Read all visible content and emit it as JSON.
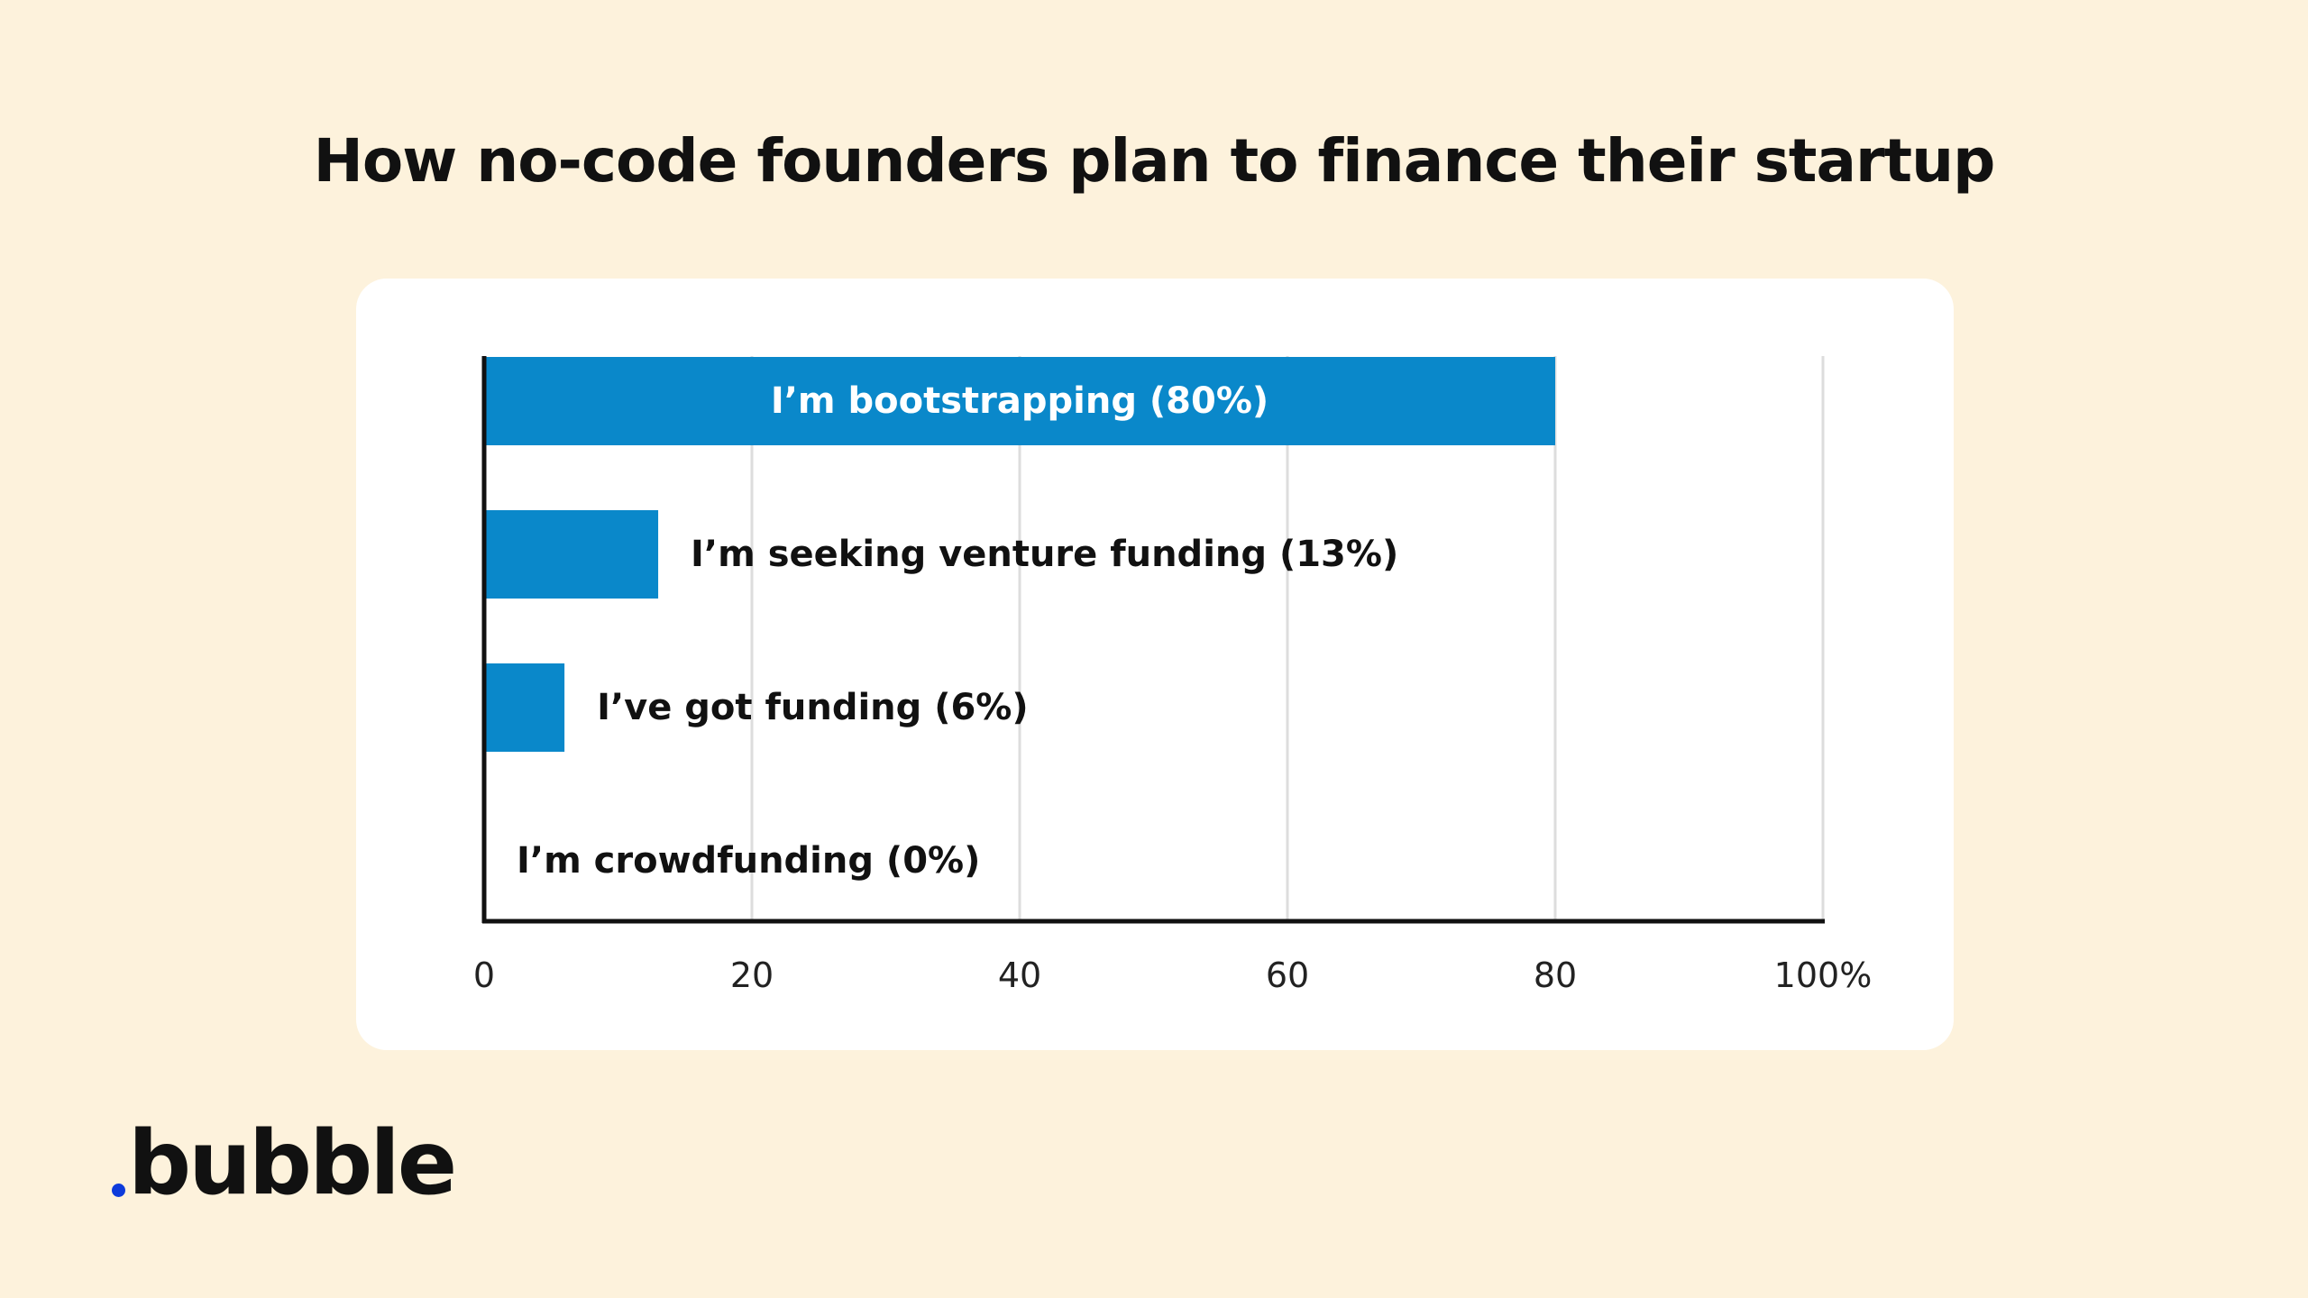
{
  "title": "How no-code founders plan to finance their startup",
  "brand": {
    "name": "bubble",
    "dot_color": "#0D3BDB"
  },
  "colors": {
    "background": "#FDF2DC",
    "card": "#FFFFFF",
    "bar": "#0A88CA",
    "grid": "#DDDDDD",
    "axis": "#111111",
    "inside_label": "#FFFFFF",
    "outside_label": "#111111"
  },
  "chart_data": {
    "type": "bar",
    "orientation": "horizontal",
    "categories": [
      "I’m bootstrapping (80%)",
      "I’m seeking venture funding (13%)",
      "I’ve got funding (6%)",
      "I’m crowdfunding (0%)"
    ],
    "values": [
      80,
      13,
      6,
      0
    ],
    "xlim": [
      0,
      100
    ],
    "xticks": [
      "0",
      "20",
      "40",
      "60",
      "80",
      "100%"
    ],
    "title": "How no-code founders plan to finance their startup",
    "xlabel": "",
    "ylabel": "",
    "grid": true,
    "legend": "none"
  }
}
